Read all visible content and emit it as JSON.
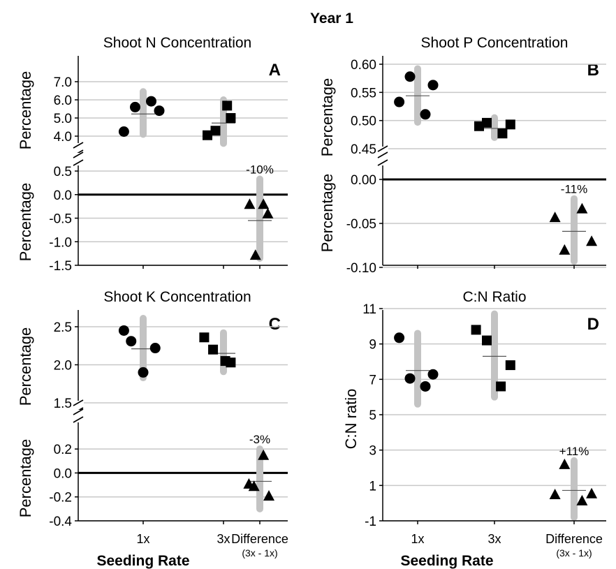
{
  "figure": {
    "title": "Year 1",
    "xlabel": "Seeding Rate"
  },
  "chart_data": [
    {
      "id": "A",
      "type": "scatter",
      "title": "Shoot N Concentration",
      "panel_letter": "A",
      "ylabel": "Percentage",
      "categories": [
        "1x",
        "3x",
        "Difference"
      ],
      "category_sublabel": "(3x - 1x)",
      "upper": {
        "ylim": [
          4.0,
          7.0
        ],
        "ticks": [
          "4.0",
          "5.0",
          "6.0",
          "7.0"
        ],
        "series": [
          {
            "name": "1x",
            "marker": "circle",
            "points": [
              [
                0.76,
                4.25
              ],
              [
                0.9,
                5.6
              ],
              [
                1.1,
                5.92
              ],
              [
                1.2,
                5.4
              ]
            ],
            "mean": 5.22,
            "range": [
              4.1,
              6.45
            ]
          },
          {
            "name": "3x",
            "marker": "square",
            "points": [
              [
                1.8,
                4.05
              ],
              [
                1.9,
                4.3
              ],
              [
                2.1,
                5.68
              ],
              [
                2.2,
                5.0
              ]
            ],
            "mean": 4.72,
            "range": [
              3.6,
              6.0
            ]
          }
        ]
      },
      "lower": {
        "ylim": [
          -1.5,
          0.5
        ],
        "ticks": [
          "-1.5",
          "-1.0",
          "-0.5",
          "0.0",
          "0.5"
        ],
        "series": [
          {
            "name": "Difference",
            "marker": "triangle",
            "points": [
              [
                2.72,
                -0.2
              ],
              [
                2.88,
                -1.28
              ],
              [
                3.1,
                -0.2
              ],
              [
                3.22,
                -0.4
              ]
            ],
            "mean": -0.55,
            "range": [
              -1.35,
              0.33
            ],
            "label": "-10%"
          }
        ]
      }
    },
    {
      "id": "B",
      "type": "scatter",
      "title": "Shoot P Concentration",
      "panel_letter": "B",
      "ylabel": "Percentage",
      "categories": [
        "1x",
        "3x",
        "Difference"
      ],
      "category_sublabel": "(3x - 1x)",
      "upper": {
        "ylim": [
          0.45,
          0.6
        ],
        "ticks": [
          "0.45",
          "0.50",
          "0.55",
          "0.60"
        ],
        "series": [
          {
            "name": "1x",
            "marker": "circle",
            "points": [
              [
                0.76,
                0.533
              ],
              [
                0.9,
                0.578
              ],
              [
                1.1,
                0.511
              ],
              [
                1.2,
                0.563
              ]
            ],
            "mean": 0.544,
            "range": [
              0.497,
              0.592
            ]
          },
          {
            "name": "3x",
            "marker": "square",
            "points": [
              [
                1.8,
                0.49
              ],
              [
                1.9,
                0.496
              ],
              [
                2.1,
                0.477
              ],
              [
                2.2,
                0.493
              ]
            ],
            "mean": 0.486,
            "range": [
              0.47,
              0.505
            ]
          }
        ]
      },
      "lower": {
        "ylim": [
          -0.1,
          0.0
        ],
        "ticks": [
          "-0.10",
          "-0.05",
          "0.00"
        ],
        "series": [
          {
            "name": "Difference",
            "marker": "triangle",
            "points": [
              [
                2.76,
                -0.043
              ],
              [
                2.88,
                -0.08
              ],
              [
                3.1,
                -0.033
              ],
              [
                3.22,
                -0.07
              ]
            ],
            "mean": -0.059,
            "range": [
              -0.093,
              -0.022
            ],
            "label": "-11%"
          }
        ]
      }
    },
    {
      "id": "C",
      "type": "scatter",
      "title": "Shoot K Concentration",
      "panel_letter": "C",
      "ylabel": "Percentage",
      "categories": [
        "1x",
        "3x",
        "Difference"
      ],
      "category_sublabel": "(3x - 1x)",
      "upper": {
        "ylim": [
          1.5,
          2.5
        ],
        "ticks": [
          "1.5",
          "2.0",
          "2.5"
        ],
        "series": [
          {
            "name": "1x",
            "marker": "circle",
            "points": [
              [
                0.76,
                2.45
              ],
              [
                0.85,
                2.31
              ],
              [
                1.0,
                1.9
              ],
              [
                1.15,
                2.22
              ]
            ],
            "mean": 2.21,
            "range": [
              1.83,
              2.61
            ]
          },
          {
            "name": "3x",
            "marker": "square",
            "points": [
              [
                1.76,
                2.36
              ],
              [
                1.87,
                2.2
              ],
              [
                2.05,
                2.05
              ],
              [
                2.2,
                2.03
              ]
            ],
            "mean": 2.15,
            "range": [
              1.91,
              2.42
            ]
          }
        ]
      },
      "lower": {
        "ylim": [
          -0.4,
          0.3
        ],
        "ticks": [
          "-0.4",
          "-0.2",
          "0.0",
          "0.2"
        ],
        "series": [
          {
            "name": "Difference",
            "marker": "triangle",
            "points": [
              [
                2.7,
                -0.09
              ],
              [
                2.84,
                -0.11
              ],
              [
                3.1,
                0.15
              ],
              [
                3.25,
                -0.19
              ]
            ],
            "mean": -0.07,
            "range": [
              -0.3,
              0.2
            ],
            "label": "-3%"
          }
        ]
      }
    },
    {
      "id": "D",
      "type": "scatter",
      "title": "C:N Ratio",
      "panel_letter": "D",
      "ylabel": "C:N ratio",
      "categories": [
        "1x",
        "3x",
        "Difference"
      ],
      "category_sublabel": "(3x - 1x)",
      "ylim": [
        -1,
        11
      ],
      "ticks": [
        "-1",
        "1",
        "3",
        "5",
        "7",
        "9",
        "11"
      ],
      "series": [
        {
          "name": "1x",
          "marker": "circle",
          "points": [
            [
              0.76,
              9.35
            ],
            [
              0.9,
              7.05
            ],
            [
              1.1,
              6.6
            ],
            [
              1.2,
              7.28
            ]
          ],
          "mean": 7.5,
          "range": [
            5.6,
            9.6
          ]
        },
        {
          "name": "3x",
          "marker": "square",
          "points": [
            [
              1.76,
              9.8
            ],
            [
              1.9,
              9.2
            ],
            [
              2.08,
              6.6
            ],
            [
              2.2,
              7.8
            ]
          ],
          "mean": 8.3,
          "range": [
            6.0,
            10.7
          ]
        },
        {
          "name": "Difference",
          "marker": "triangle",
          "points": [
            [
              2.76,
              0.5
            ],
            [
              2.88,
              2.2
            ],
            [
              3.1,
              0.15
            ],
            [
              3.22,
              0.55
            ]
          ],
          "mean": 0.72,
          "range": [
            -0.8,
            2.4
          ],
          "label": "+11%"
        }
      ]
    }
  ]
}
